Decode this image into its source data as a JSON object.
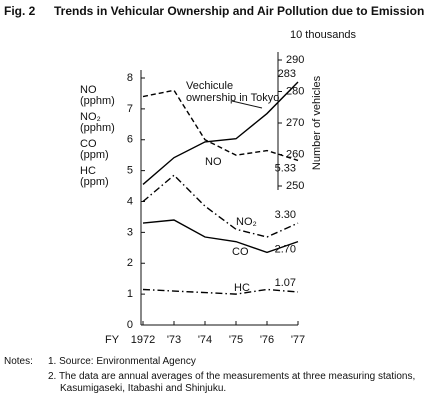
{
  "figure_label": "Fig. 2",
  "chart_data": {
    "type": "line",
    "title": "Trends in Vehicular Ownership and Air Pollution due to Emission",
    "x_prefix": "FY",
    "categories": [
      "1972",
      "'73",
      "'74",
      "'75",
      "'76",
      "'77"
    ],
    "ylim": [
      0,
      8
    ],
    "yticks": [
      0,
      1,
      2,
      3,
      4,
      5,
      6,
      7,
      8
    ],
    "y_axis_labels": [
      {
        "name": "NO",
        "unit": "(pphm)"
      },
      {
        "name": "NO₂",
        "unit": "(pphm)"
      },
      {
        "name": "CO",
        "unit": "(ppm)"
      },
      {
        "name": "HC",
        "unit": "(ppm)"
      }
    ],
    "y2lim": [
      250,
      290
    ],
    "y2ticks": [
      250,
      260,
      270,
      280,
      290
    ],
    "y2_unit": "10 thousands",
    "y2_label": "Number of vehicles",
    "series": [
      {
        "name": "Vechicule ownership in Tokyo",
        "axis": "y2",
        "color": "#000000",
        "dash": "solid",
        "values": [
          250.5,
          259,
          264,
          265,
          273,
          283
        ],
        "value_labels": [
          null,
          null,
          null,
          null,
          null,
          "283"
        ]
      },
      {
        "name": "NO",
        "color": "#000000",
        "dash": "dashed",
        "values": [
          7.4,
          7.6,
          6.0,
          5.5,
          5.65,
          5.33
        ],
        "value_labels": [
          null,
          null,
          null,
          null,
          null,
          "5.33"
        ]
      },
      {
        "name": "NO₂",
        "color": "#000000",
        "dash": "dashdot",
        "values": [
          4.0,
          4.85,
          3.85,
          3.1,
          2.85,
          3.3
        ],
        "value_labels": [
          null,
          null,
          null,
          null,
          null,
          "3.30"
        ]
      },
      {
        "name": "CO",
        "color": "#000000",
        "dash": "solid",
        "values": [
          3.3,
          3.4,
          2.85,
          2.7,
          2.35,
          2.7
        ],
        "value_labels": [
          null,
          null,
          null,
          null,
          null,
          "2.70"
        ]
      },
      {
        "name": "HC",
        "color": "#000000",
        "dash": "dashdot",
        "values": [
          1.15,
          1.1,
          1.05,
          1.0,
          1.15,
          1.07
        ],
        "value_labels": [
          null,
          null,
          null,
          null,
          null,
          "1.07"
        ]
      }
    ]
  },
  "notes": {
    "heading": "Notes:",
    "items": [
      "1.  Source:  Environmental Agency",
      "2.  The data are annual averages of the measurements at three measuring stations, Kasumigaseki, Itabashi and Shinjuku."
    ]
  }
}
